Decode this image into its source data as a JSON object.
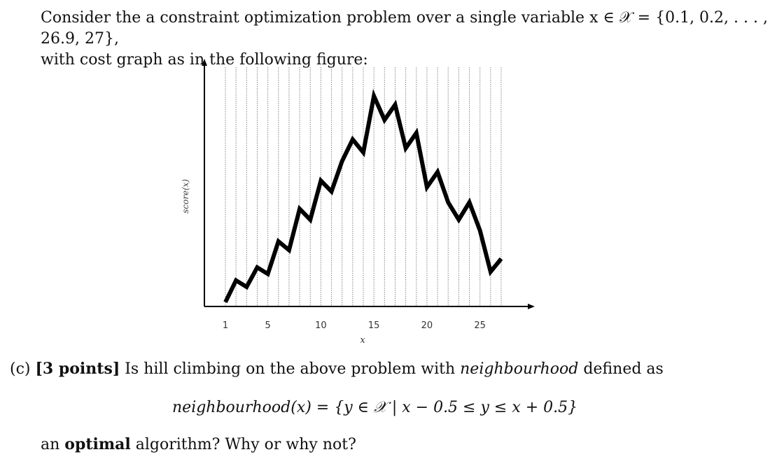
{
  "intro": {
    "line1": "Consider the a constraint optimization problem over a single variable x ∈ 𝒳 = {0.1, 0.2, . . . , 26.9, 27},",
    "line2": "with cost graph as in the following figure:"
  },
  "question": {
    "part": "(c)",
    "points": "[3 points]",
    "text_before": " Is hill climbing on the above problem with ",
    "emph": "neighbourhood",
    "text_after": " defined as"
  },
  "formula": "neighbourhood(x) = {y ∈ 𝒳 | x − 0.5 ≤ y ≤ x + 0.5}",
  "answer_line": {
    "before": "an ",
    "bold": "optimal",
    "after": " algorithm? Why or why not?"
  },
  "chart_data": {
    "type": "line",
    "xlabel": "x",
    "ylabel": "score(x)",
    "xlim": [
      0,
      27
    ],
    "ylim": [
      0,
      100
    ],
    "x_ticks": [
      1,
      5,
      10,
      15,
      20,
      25
    ],
    "grid": "vertical dotted lines at each integer x",
    "series": [
      {
        "x": [
          1,
          2,
          3,
          4,
          5,
          6,
          7,
          8,
          9,
          10,
          11,
          12,
          13,
          14,
          15,
          16,
          17,
          18,
          19,
          20,
          21,
          22,
          23,
          24,
          25,
          26,
          27
        ],
        "values": [
          2,
          12,
          9,
          18,
          15,
          30,
          26,
          45,
          40,
          58,
          53,
          67,
          77,
          71,
          97,
          86,
          93,
          73,
          80,
          55,
          62,
          48,
          40,
          48,
          35,
          16,
          22
        ],
        "color": "#000000"
      }
    ]
  }
}
